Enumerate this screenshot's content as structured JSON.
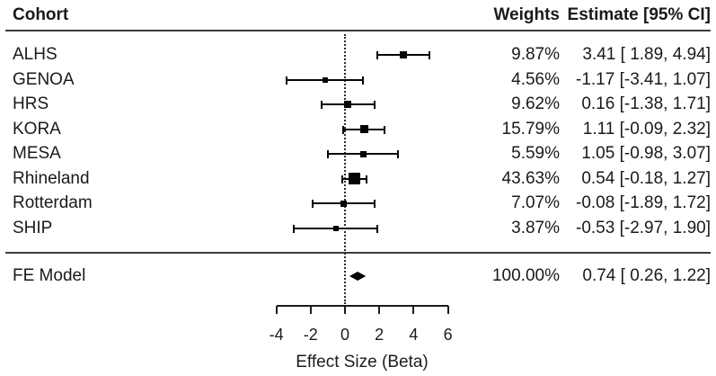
{
  "header": {
    "cohort": "Cohort",
    "weights": "Weights",
    "estimate": "Estimate [95% CI]"
  },
  "colors": {
    "marker": "#050505",
    "ci_line": "#050505",
    "rule": "#3c3c3c",
    "text": "#1a1a1a",
    "background": "#ffffff"
  },
  "chart_data": {
    "type": "forest",
    "title": "",
    "xlabel": "Effect Size (Beta)",
    "xlim": [
      -4,
      6
    ],
    "x_ticks": [
      -4,
      -2,
      0,
      2,
      4,
      6
    ],
    "zero_reference": 0,
    "legend": "none",
    "rows": [
      {
        "cohort": "ALHS",
        "weight_pct": 9.87,
        "weight_label": "9.87%",
        "estimate": 3.41,
        "ci_low": 1.89,
        "ci_high": 4.94,
        "estimate_label": "3.41 [ 1.89, 4.94]"
      },
      {
        "cohort": "GENOA",
        "weight_pct": 4.56,
        "weight_label": "4.56%",
        "estimate": -1.17,
        "ci_low": -3.41,
        "ci_high": 1.07,
        "estimate_label": "-1.17 [-3.41, 1.07]"
      },
      {
        "cohort": "HRS",
        "weight_pct": 9.62,
        "weight_label": "9.62%",
        "estimate": 0.16,
        "ci_low": -1.38,
        "ci_high": 1.71,
        "estimate_label": "0.16 [-1.38, 1.71]"
      },
      {
        "cohort": "KORA",
        "weight_pct": 15.79,
        "weight_label": "15.79%",
        "estimate": 1.11,
        "ci_low": -0.09,
        "ci_high": 2.32,
        "estimate_label": "1.11 [-0.09, 2.32]"
      },
      {
        "cohort": "MESA",
        "weight_pct": 5.59,
        "weight_label": "5.59%",
        "estimate": 1.05,
        "ci_low": -0.98,
        "ci_high": 3.07,
        "estimate_label": "1.05 [-0.98, 3.07]"
      },
      {
        "cohort": "Rhineland",
        "weight_pct": 43.63,
        "weight_label": "43.63%",
        "estimate": 0.54,
        "ci_low": -0.18,
        "ci_high": 1.27,
        "estimate_label": "0.54 [-0.18, 1.27]"
      },
      {
        "cohort": "Rotterdam",
        "weight_pct": 7.07,
        "weight_label": "7.07%",
        "estimate": -0.08,
        "ci_low": -1.89,
        "ci_high": 1.72,
        "estimate_label": "-0.08 [-1.89, 1.72]"
      },
      {
        "cohort": "SHIP",
        "weight_pct": 3.87,
        "weight_label": "3.87%",
        "estimate": -0.53,
        "ci_low": -2.97,
        "ci_high": 1.9,
        "estimate_label": "-0.53 [-2.97, 1.90]"
      }
    ],
    "summary": {
      "cohort": "FE Model",
      "weight_pct": 100.0,
      "weight_label": "100.00%",
      "estimate": 0.74,
      "ci_low": 0.26,
      "ci_high": 1.22,
      "estimate_label": "0.74 [ 0.26, 1.22]"
    }
  }
}
